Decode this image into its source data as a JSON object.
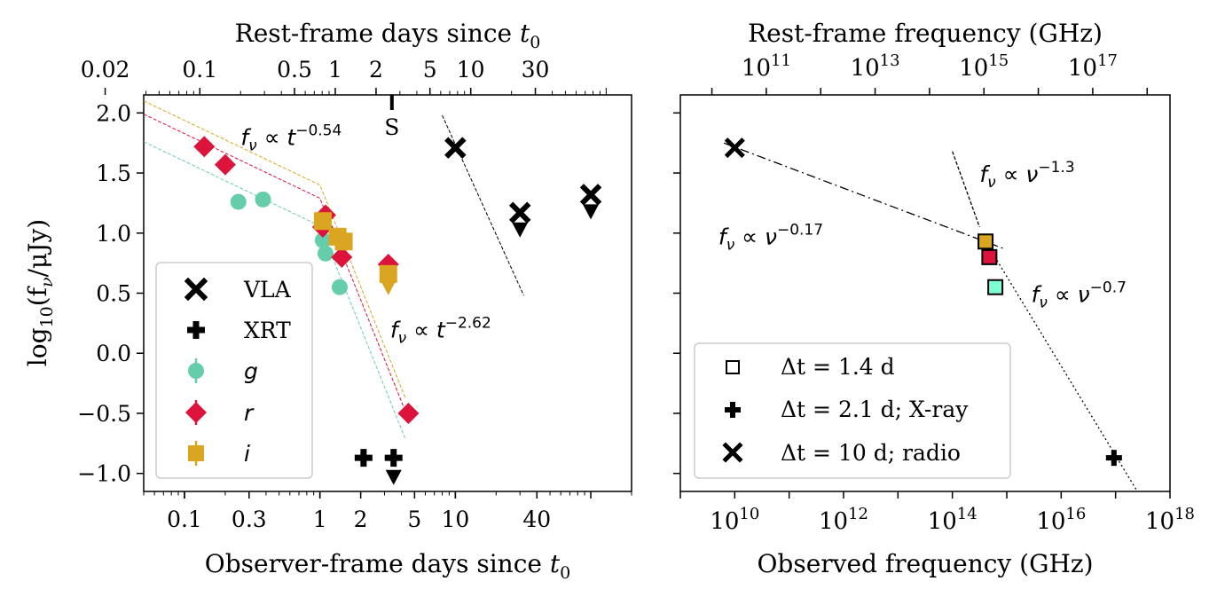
{
  "chart_data": [
    {
      "type": "scatter",
      "panel": "left",
      "xscale": "log",
      "xlabel": "Observer-frame days since",
      "xlabel_sym": "t",
      "xlabel_sub": "0",
      "top_xlabel": "Rest-frame days since",
      "top_xlabel_sym": "t",
      "top_xlabel_sub": "0",
      "ylabel": "log",
      "ylabel_sub": "10",
      "ylabel_rest": "(f",
      "ylabel_nu": "ν",
      "ylabel_end": "/μJy)",
      "xlim": [
        0.05,
        200
      ],
      "ylim": [
        -1.15,
        2.15
      ],
      "x_ticks": [
        {
          "v": 0.1,
          "label": "0.1"
        },
        {
          "v": 0.3,
          "label": "0.3"
        },
        {
          "v": 1,
          "label": "1"
        },
        {
          "v": 2,
          "label": "2"
        },
        {
          "v": 5,
          "label": "5"
        },
        {
          "v": 10,
          "label": "10"
        },
        {
          "v": 40,
          "label": "40"
        }
      ],
      "top_ticks": [
        {
          "v": 0.02,
          "label": "0.02"
        },
        {
          "v": 0.1,
          "label": "0.1"
        },
        {
          "v": 0.5,
          "label": "0.5"
        },
        {
          "v": 1,
          "label": "1"
        },
        {
          "v": 2,
          "label": "2"
        },
        {
          "v": 5,
          "label": "5"
        },
        {
          "v": 10,
          "label": "10"
        },
        {
          "v": 30,
          "label": "30"
        }
      ],
      "top_scale": 0.77,
      "y_ticks": [
        {
          "v": 2.0,
          "label": "2.0"
        },
        {
          "v": 1.5,
          "label": "1.5"
        },
        {
          "v": 1.0,
          "label": "1.0"
        },
        {
          "v": 0.5,
          "label": "0.5"
        },
        {
          "v": 0.0,
          "label": "0.0"
        },
        {
          "v": -0.5,
          "label": "−0.5"
        },
        {
          "v": -1.0,
          "label": "−1.0"
        }
      ],
      "series": [
        {
          "name": "VLA",
          "marker": "x",
          "color": "#000000",
          "points": [
            {
              "x": 10,
              "y": 1.71
            },
            {
              "x": 30,
              "y": 1.17
            },
            {
              "x": 100,
              "y": 1.32
            }
          ],
          "upper_limits": [
            {
              "x": 30,
              "y": 1.03
            },
            {
              "x": 100,
              "y": 1.18
            }
          ]
        },
        {
          "name": "XRT",
          "marker": "plus",
          "color": "#000000",
          "points": [
            {
              "x": 2.1,
              "y": -0.87
            },
            {
              "x": 3.5,
              "y": -0.87
            }
          ],
          "upper_limits": [
            {
              "x": 3.5,
              "y": -1.03
            }
          ]
        },
        {
          "name": "g",
          "marker": "circle",
          "color": "#66cdaa",
          "points": [
            {
              "x": 0.25,
              "y": 1.26
            },
            {
              "x": 0.38,
              "y": 1.28
            },
            {
              "x": 1.05,
              "y": 0.94
            },
            {
              "x": 1.1,
              "y": 0.83
            },
            {
              "x": 1.4,
              "y": 0.55
            }
          ]
        },
        {
          "name": "r",
          "marker": "diamond",
          "color": "#dc143c",
          "points": [
            {
              "x": 0.14,
              "y": 1.72
            },
            {
              "x": 0.2,
              "y": 1.57
            },
            {
              "x": 1.05,
              "y": 1.05
            },
            {
              "x": 1.1,
              "y": 1.15
            },
            {
              "x": 1.45,
              "y": 0.8
            },
            {
              "x": 3.2,
              "y": 0.74
            },
            {
              "x": 4.5,
              "y": -0.5
            }
          ]
        },
        {
          "name": "i",
          "marker": "square",
          "color": "#daa520",
          "points": [
            {
              "x": 1.05,
              "y": 1.1
            },
            {
              "x": 1.35,
              "y": 0.97
            },
            {
              "x": 1.5,
              "y": 0.93
            },
            {
              "x": 3.2,
              "y": 0.66
            }
          ],
          "upper_limits": [
            {
              "x": 3.2,
              "y": 0.55
            }
          ]
        }
      ],
      "fits": [
        {
          "color": "#66cdaa",
          "points": [
            [
              0.05,
              1.76
            ],
            [
              1.0,
              1.06
            ],
            [
              4.3,
              -0.72
            ]
          ]
        },
        {
          "color": "#dc143c",
          "points": [
            [
              0.05,
              1.99
            ],
            [
              1.0,
              1.29
            ],
            [
              4.3,
              -0.49
            ]
          ]
        },
        {
          "color": "#daa520",
          "points": [
            [
              0.05,
              2.1
            ],
            [
              1.0,
              1.4
            ],
            [
              4.3,
              -0.38
            ]
          ]
        },
        {
          "color": "#000000",
          "points": [
            [
              8.0,
              1.98
            ],
            [
              32.0,
              0.48
            ]
          ]
        }
      ],
      "annotations": [
        {
          "id": "late_slope",
          "text": "−2.62",
          "pre": "f",
          "nu": "ν",
          "prop": " ∝ ",
          "t": "t",
          "x": 3.3,
          "y": 0.22
        },
        {
          "id": "early_slope",
          "text": "−0.54",
          "pre": "f",
          "nu": "ν",
          "prop": " ∝ ",
          "t": "t",
          "x": 0.26,
          "y": 1.82
        },
        {
          "id": "s_marker",
          "text": "S",
          "x": 3.4
        }
      ]
    },
    {
      "type": "scatter",
      "panel": "right",
      "xscale": "log",
      "xlabel": "Observed frequency (GHz)",
      "top_xlabel": "Rest-frame frequency (GHz)",
      "xlim_log": [
        9.0,
        18.0
      ],
      "ylim": [
        -1.15,
        2.15
      ],
      "x_ticks": [
        {
          "v": 10,
          "base": "10",
          "exp": "10"
        },
        {
          "v": 12,
          "base": "10",
          "exp": "12"
        },
        {
          "v": 14,
          "base": "10",
          "exp": "14"
        },
        {
          "v": 16,
          "base": "10",
          "exp": "16"
        },
        {
          "v": 18,
          "base": "10",
          "exp": "18"
        }
      ],
      "top_ticks": [
        {
          "v": 11,
          "base": "10",
          "exp": "11"
        },
        {
          "v": 13,
          "base": "10",
          "exp": "13"
        },
        {
          "v": 15,
          "base": "10",
          "exp": "15"
        },
        {
          "v": 17,
          "base": "10",
          "exp": "17"
        }
      ],
      "top_shift": 0.42,
      "series": [
        {
          "name": "Δt = 1.4 d",
          "marker": "square",
          "points": [
            {
              "logx": 14.61,
              "y": 0.93,
              "fill": "#daa520"
            },
            {
              "logx": 14.68,
              "y": 0.8,
              "fill": "#dc143c"
            },
            {
              "logx": 14.79,
              "y": 0.55,
              "fill": "#7fffd4"
            }
          ]
        },
        {
          "name": "Δt = 2.1 d; X-ray",
          "marker": "plus",
          "points": [
            {
              "logx": 16.97,
              "y": -0.87
            }
          ]
        },
        {
          "name": "Δt = 10 d; radio",
          "marker": "x",
          "points": [
            {
              "logx": 10.0,
              "y": 1.71
            }
          ]
        }
      ],
      "fits": [
        {
          "style": "dashdot",
          "points": [
            [
              9.8,
              1.75
            ],
            [
              14.95,
              0.87
            ]
          ]
        },
        {
          "style": "dashed",
          "points": [
            [
              14.0,
              1.68
            ],
            [
              14.5,
              1.05
            ]
          ]
        },
        {
          "style": "dotted",
          "points": [
            [
              14.65,
              0.9
            ],
            [
              17.4,
              -1.15
            ]
          ]
        }
      ],
      "annotations": [
        {
          "id": "nu013",
          "pre": "f",
          "nu": "ν",
          "prop": " ∝ ",
          "base": "ν",
          "exp": "−1.3",
          "logx": 14.5,
          "y": 1.5
        },
        {
          "id": "nu017",
          "pre": "f",
          "nu": "ν",
          "prop": " ∝ ",
          "base": "ν",
          "exp": "−0.17",
          "logx": 9.7,
          "y": 0.98
        },
        {
          "id": "nu07",
          "pre": "f",
          "nu": "ν",
          "prop": " ∝ ",
          "base": "ν",
          "exp": "−0.7",
          "logx": 15.45,
          "y": 0.5
        }
      ],
      "legend_labels": {
        "sq_dt": "Δt = 1.4 d",
        "plus_dt": "Δt = 2.1 d; X-ray",
        "x_dt": "Δt = 10 d; radio"
      }
    }
  ]
}
